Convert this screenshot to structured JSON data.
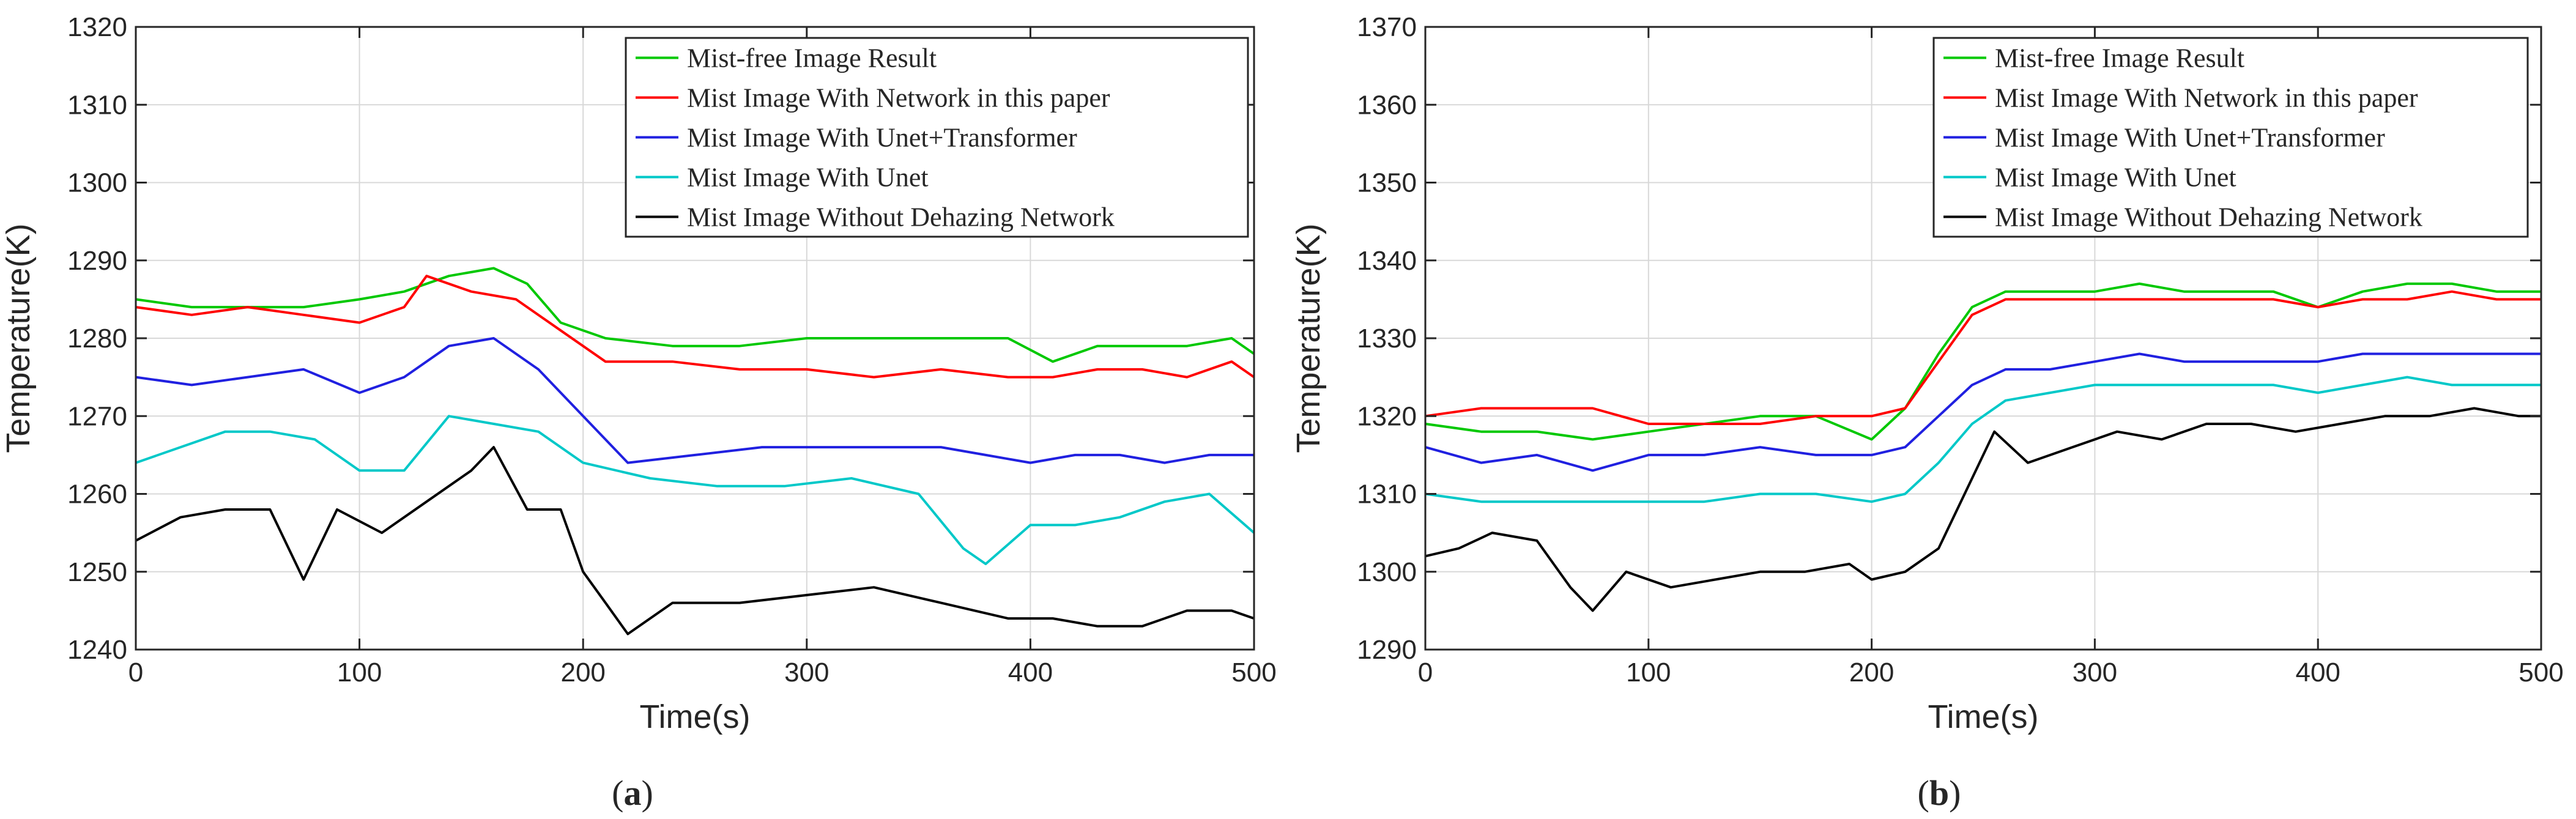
{
  "chart_data": [
    {
      "panel_label": "(a)",
      "type": "line",
      "xlabel": "Time(s)",
      "ylabel": "Temperature(K)",
      "xlim": [
        0,
        500
      ],
      "ylim": [
        1240,
        1320
      ],
      "xticks": [
        "0",
        "100",
        "200",
        "300",
        "400",
        "500"
      ],
      "yticks": [
        "1240",
        "1250",
        "1260",
        "1270",
        "1280",
        "1290",
        "1300",
        "1310",
        "1320"
      ],
      "grid": true,
      "legend_position": "top-right",
      "series": [
        {
          "name": "Mist-free Image Result",
          "color": "#00c800",
          "x": [
            0,
            25,
            50,
            75,
            100,
            120,
            140,
            160,
            175,
            190,
            210,
            240,
            270,
            300,
            330,
            360,
            390,
            410,
            430,
            450,
            470,
            490,
            500
          ],
          "y": [
            1285,
            1284,
            1284,
            1284,
            1285,
            1286,
            1288,
            1289,
            1287,
            1282,
            1280,
            1279,
            1279,
            1280,
            1280,
            1280,
            1280,
            1277,
            1279,
            1279,
            1279,
            1280,
            1278
          ]
        },
        {
          "name": "Mist Image With Network in this paper",
          "color": "#ff0000",
          "x": [
            0,
            25,
            50,
            75,
            100,
            120,
            130,
            150,
            170,
            190,
            210,
            240,
            270,
            300,
            330,
            360,
            390,
            410,
            430,
            450,
            470,
            490,
            500
          ],
          "y": [
            1284,
            1283,
            1284,
            1283,
            1282,
            1284,
            1288,
            1286,
            1285,
            1281,
            1277,
            1277,
            1276,
            1276,
            1275,
            1276,
            1275,
            1275,
            1276,
            1276,
            1275,
            1277,
            1275
          ]
        },
        {
          "name": "Mist Image With Unet+Transformer",
          "color": "#2020e0",
          "x": [
            0,
            25,
            50,
            75,
            100,
            120,
            140,
            160,
            180,
            200,
            220,
            250,
            280,
            300,
            330,
            360,
            380,
            400,
            420,
            440,
            460,
            480,
            500
          ],
          "y": [
            1275,
            1274,
            1275,
            1276,
            1273,
            1275,
            1279,
            1280,
            1276,
            1270,
            1264,
            1265,
            1266,
            1266,
            1266,
            1266,
            1265,
            1264,
            1265,
            1265,
            1264,
            1265,
            1265
          ]
        },
        {
          "name": "Mist Image With Unet",
          "color": "#00c8c8",
          "x": [
            0,
            20,
            40,
            60,
            80,
            100,
            120,
            140,
            160,
            180,
            200,
            230,
            260,
            290,
            320,
            350,
            370,
            380,
            400,
            420,
            440,
            460,
            480,
            500
          ],
          "y": [
            1264,
            1266,
            1268,
            1268,
            1267,
            1263,
            1263,
            1270,
            1269,
            1268,
            1264,
            1262,
            1261,
            1261,
            1262,
            1260,
            1253,
            1251,
            1256,
            1256,
            1257,
            1259,
            1260,
            1255
          ]
        },
        {
          "name": "Mist Image Without Dehazing Network",
          "color": "#000000",
          "x": [
            0,
            20,
            40,
            60,
            70,
            75,
            90,
            110,
            130,
            150,
            160,
            175,
            190,
            200,
            210,
            220,
            240,
            270,
            300,
            330,
            360,
            390,
            410,
            430,
            450,
            470,
            490,
            500
          ],
          "y": [
            1254,
            1257,
            1258,
            1258,
            1252,
            1249,
            1258,
            1255,
            1259,
            1263,
            1266,
            1258,
            1258,
            1250,
            1246,
            1242,
            1246,
            1246,
            1247,
            1248,
            1246,
            1244,
            1244,
            1243,
            1243,
            1245,
            1245,
            1244
          ]
        }
      ]
    },
    {
      "panel_label": "(b)",
      "type": "line",
      "xlabel": "Time(s)",
      "ylabel": "Temperature(K)",
      "xlim": [
        0,
        500
      ],
      "ylim": [
        1290,
        1370
      ],
      "xticks": [
        "0",
        "100",
        "200",
        "300",
        "400",
        "500"
      ],
      "yticks": [
        "1290",
        "1300",
        "1310",
        "1320",
        "1330",
        "1340",
        "1350",
        "1360",
        "1370"
      ],
      "grid": true,
      "legend_position": "top-right",
      "series": [
        {
          "name": "Mist-free Image Result",
          "color": "#00c800",
          "x": [
            0,
            25,
            50,
            75,
            100,
            125,
            150,
            175,
            200,
            215,
            230,
            245,
            260,
            280,
            300,
            320,
            340,
            360,
            380,
            400,
            420,
            440,
            460,
            480,
            500
          ],
          "y": [
            1319,
            1318,
            1318,
            1317,
            1318,
            1319,
            1320,
            1320,
            1317,
            1321,
            1328,
            1334,
            1336,
            1336,
            1336,
            1337,
            1336,
            1336,
            1336,
            1334,
            1336,
            1337,
            1337,
            1336,
            1336
          ]
        },
        {
          "name": "Mist Image With Network in this paper",
          "color": "#ff0000",
          "x": [
            0,
            25,
            50,
            75,
            100,
            125,
            150,
            175,
            200,
            215,
            230,
            245,
            260,
            280,
            300,
            320,
            340,
            360,
            380,
            400,
            420,
            440,
            460,
            480,
            500
          ],
          "y": [
            1320,
            1321,
            1321,
            1321,
            1319,
            1319,
            1319,
            1320,
            1320,
            1321,
            1327,
            1333,
            1335,
            1335,
            1335,
            1335,
            1335,
            1335,
            1335,
            1334,
            1335,
            1335,
            1336,
            1335,
            1335
          ]
        },
        {
          "name": "Mist Image With Unet+Transformer",
          "color": "#2020e0",
          "x": [
            0,
            25,
            50,
            75,
            100,
            125,
            150,
            175,
            200,
            215,
            230,
            245,
            260,
            280,
            300,
            320,
            340,
            360,
            380,
            400,
            420,
            440,
            460,
            480,
            500
          ],
          "y": [
            1316,
            1314,
            1315,
            1313,
            1315,
            1315,
            1316,
            1315,
            1315,
            1316,
            1320,
            1324,
            1326,
            1326,
            1327,
            1328,
            1327,
            1327,
            1327,
            1327,
            1328,
            1328,
            1328,
            1328,
            1328
          ]
        },
        {
          "name": "Mist Image With Unet",
          "color": "#00c8c8",
          "x": [
            0,
            25,
            50,
            75,
            100,
            125,
            150,
            175,
            200,
            215,
            230,
            245,
            260,
            280,
            300,
            320,
            340,
            360,
            380,
            400,
            420,
            440,
            460,
            480,
            500
          ],
          "y": [
            1310,
            1309,
            1309,
            1309,
            1309,
            1309,
            1310,
            1310,
            1309,
            1310,
            1314,
            1319,
            1322,
            1323,
            1324,
            1324,
            1324,
            1324,
            1324,
            1323,
            1324,
            1325,
            1324,
            1324,
            1324
          ]
        },
        {
          "name": "Mist Image Without Dehazing Network",
          "color": "#000000",
          "x": [
            0,
            15,
            30,
            50,
            65,
            75,
            90,
            110,
            130,
            150,
            170,
            190,
            200,
            215,
            230,
            245,
            255,
            270,
            290,
            310,
            330,
            350,
            370,
            390,
            410,
            430,
            450,
            470,
            490,
            500
          ],
          "y": [
            1302,
            1303,
            1305,
            1304,
            1298,
            1295,
            1300,
            1298,
            1299,
            1300,
            1300,
            1301,
            1299,
            1300,
            1303,
            1312,
            1318,
            1314,
            1316,
            1318,
            1317,
            1319,
            1319,
            1318,
            1319,
            1320,
            1320,
            1321,
            1320,
            1320
          ]
        }
      ]
    }
  ]
}
